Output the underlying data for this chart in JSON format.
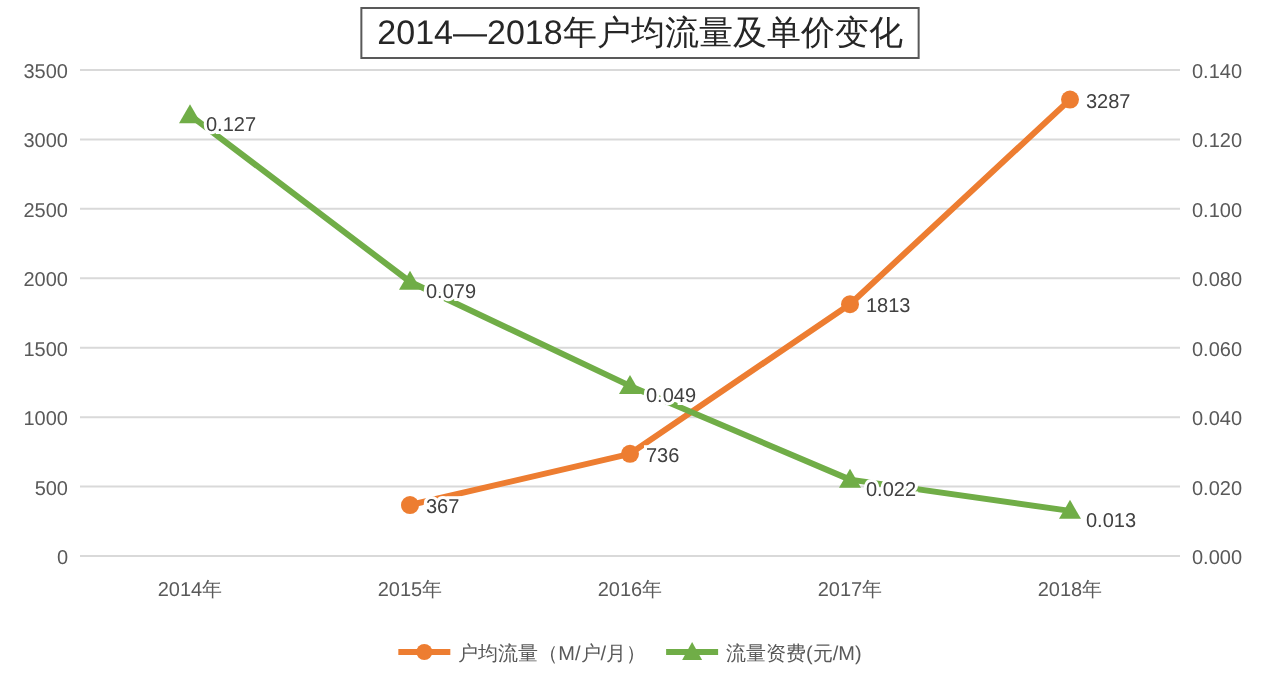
{
  "chart_data": {
    "type": "line",
    "title": "2014—2018年户均流量及单价变化",
    "categories": [
      "2014年",
      "2015年",
      "2016年",
      "2017年",
      "2018年"
    ],
    "series": [
      {
        "name": "户均流量（M/户/月）",
        "color": "#ed7d31",
        "marker": "circle",
        "values": [
          null,
          367,
          736,
          1813,
          3287
        ]
      },
      {
        "name": "流量资费(元/M)",
        "color": "#70ad47",
        "marker": "triangle",
        "axis": "y2",
        "values": [
          0.127,
          0.079,
          0.049,
          0.022,
          0.013
        ]
      }
    ],
    "ylim": [
      0,
      3500
    ],
    "yticks": [
      0,
      500,
      1000,
      1500,
      2000,
      2500,
      3000,
      3500
    ],
    "y2lim": [
      0,
      0.14
    ],
    "y2ticks": [
      {
        "value": 0,
        "label": "0.000"
      },
      {
        "value": 0.02,
        "label": "0.020"
      },
      {
        "value": 0.04,
        "label": "0.040"
      },
      {
        "value": 0.06,
        "label": "0.060"
      },
      {
        "value": 0.08,
        "label": "0.080"
      },
      {
        "value": 0.1,
        "label": "0.100"
      },
      {
        "value": 0.12,
        "label": "0.120"
      },
      {
        "value": 0.14,
        "label": "0.140"
      }
    ],
    "grid": "y",
    "legend": "bottom",
    "data_labels": true,
    "line_style": "solid"
  }
}
